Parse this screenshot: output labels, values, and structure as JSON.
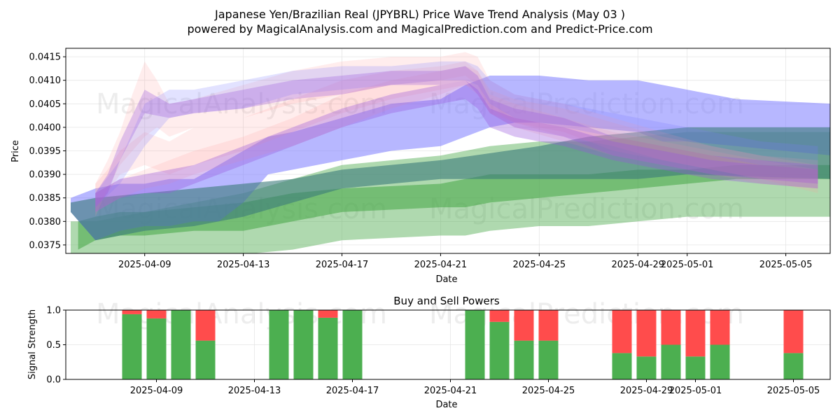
{
  "title_line1": "Japanese Yen/Brazilian Real (JPYBRL) Price Wave Trend Analysis (May 03 )",
  "title_line2": "powered by MagicalAnalysis.com and MagicalPrediction.com and Predict-Price.com",
  "watermarks": [
    "MagicalAnalysis.com",
    "MagicalPrediction.com"
  ],
  "colors": {
    "red": "#ff9a9a",
    "blue": "#7b7bff",
    "purple": "#9955dd",
    "green": "#4daa4d",
    "teal": "#3a7a7a",
    "buy": "#4caf50",
    "sell": "#ff4c4c"
  },
  "chart_data": [
    {
      "type": "area",
      "title": "",
      "xlabel": "Date",
      "ylabel": "Price",
      "x_start": "2025-04-06",
      "xlim": [
        -0.2,
        30.8
      ],
      "ylim": [
        0.03732,
        0.04168
      ],
      "x_ticks": [
        {
          "day": 3,
          "label": "2025-04-09"
        },
        {
          "day": 7,
          "label": "2025-04-13"
        },
        {
          "day": 11,
          "label": "2025-04-17"
        },
        {
          "day": 15,
          "label": "2025-04-21"
        },
        {
          "day": 19,
          "label": "2025-04-25"
        },
        {
          "day": 23,
          "label": "2025-04-29"
        },
        {
          "day": 25,
          "label": "2025-05-01"
        },
        {
          "day": 29,
          "label": "2025-05-05"
        }
      ],
      "y_ticks": [
        {
          "v": 0.0375,
          "label": "0.0375"
        },
        {
          "v": 0.038,
          "label": "0.0380"
        },
        {
          "v": 0.0385,
          "label": "0.0385"
        },
        {
          "v": 0.039,
          "label": "0.0390"
        },
        {
          "v": 0.0395,
          "label": "0.0395"
        },
        {
          "v": 0.04,
          "label": "0.0400"
        },
        {
          "v": 0.0405,
          "label": "0.0405"
        },
        {
          "v": 0.041,
          "label": "0.0410"
        },
        {
          "v": 0.0415,
          "label": "0.0415"
        }
      ],
      "bands": [
        {
          "color": "green",
          "opacity": 0.45,
          "x": [
            0,
            1,
            3,
            5,
            7,
            9,
            11,
            15,
            16,
            17,
            19,
            21,
            23,
            25,
            27,
            30.9
          ],
          "lo": [
            0.0372,
            0.0372,
            0.0373,
            0.0373,
            0.0373,
            0.0374,
            0.0376,
            0.0377,
            0.0377,
            0.0378,
            0.0379,
            0.0379,
            0.038,
            0.0381,
            0.0381,
            0.0381
          ],
          "hi": [
            0.038,
            0.038,
            0.0382,
            0.0384,
            0.0386,
            0.0389,
            0.0392,
            0.0394,
            0.0395,
            0.0396,
            0.0397,
            0.0397,
            0.0398,
            0.0399,
            0.0399,
            0.0399
          ]
        },
        {
          "color": "green",
          "opacity": 0.6,
          "x": [
            0.3,
            1,
            2,
            3,
            5,
            7,
            9,
            11,
            15,
            16,
            17,
            19,
            21,
            23,
            25,
            27,
            30.9
          ],
          "lo": [
            0.0374,
            0.0376,
            0.0377,
            0.0377,
            0.0378,
            0.0378,
            0.038,
            0.0382,
            0.0383,
            0.0383,
            0.0384,
            0.0385,
            0.0386,
            0.0387,
            0.0388,
            0.0389,
            0.0389
          ],
          "hi": [
            0.038,
            0.0381,
            0.0382,
            0.0382,
            0.0383,
            0.0384,
            0.0386,
            0.0387,
            0.0388,
            0.0389,
            0.039,
            0.039,
            0.039,
            0.0391,
            0.0391,
            0.0392,
            0.0392
          ]
        },
        {
          "color": "blue",
          "opacity": 0.55,
          "x": [
            0,
            1,
            2,
            3,
            4,
            5,
            6,
            7,
            8,
            9,
            11,
            13,
            15,
            16,
            17,
            18,
            19,
            21,
            23,
            24,
            25,
            27,
            30.9
          ],
          "lo": [
            0.0382,
            0.0376,
            0.0378,
            0.0379,
            0.0379,
            0.038,
            0.038,
            0.0384,
            0.039,
            0.0391,
            0.0393,
            0.0395,
            0.0396,
            0.0398,
            0.04,
            0.0401,
            0.0401,
            0.04,
            0.0399,
            0.0397,
            0.0397,
            0.0396,
            0.0394
          ],
          "hi": [
            0.0385,
            0.0387,
            0.0388,
            0.0388,
            0.0389,
            0.0389,
            0.0392,
            0.0395,
            0.0398,
            0.0399,
            0.0402,
            0.0405,
            0.0406,
            0.0409,
            0.0411,
            0.0411,
            0.0411,
            0.041,
            0.041,
            0.0409,
            0.0408,
            0.0406,
            0.0405
          ]
        },
        {
          "color": "teal",
          "opacity": 0.6,
          "x": [
            0,
            1,
            3,
            5,
            7,
            9,
            11,
            15,
            19,
            21,
            23,
            25,
            30.9
          ],
          "lo": [
            0.0382,
            0.0376,
            0.0378,
            0.0379,
            0.0381,
            0.0384,
            0.0387,
            0.0389,
            0.0389,
            0.0389,
            0.0389,
            0.039,
            0.0389
          ],
          "hi": [
            0.0384,
            0.0385,
            0.0386,
            0.0387,
            0.0388,
            0.0389,
            0.0391,
            0.0393,
            0.0396,
            0.0398,
            0.0399,
            0.04,
            0.04
          ]
        },
        {
          "color": "red",
          "opacity": 0.18,
          "x": [
            1,
            1.5,
            2,
            2.5,
            3,
            3.5,
            4,
            5,
            7,
            9,
            11,
            13,
            15,
            16,
            16.5,
            17,
            18,
            20,
            22,
            24,
            26,
            28,
            30.3
          ],
          "lo": [
            0.0381,
            0.0387,
            0.0392,
            0.0395,
            0.0398,
            0.04,
            0.0398,
            0.04,
            0.0402,
            0.0405,
            0.0407,
            0.0409,
            0.041,
            0.0411,
            0.0409,
            0.0404,
            0.0401,
            0.0399,
            0.0395,
            0.0393,
            0.0391,
            0.0389,
            0.0386
          ],
          "hi": [
            0.0388,
            0.0393,
            0.0399,
            0.0407,
            0.0414,
            0.041,
            0.0405,
            0.0406,
            0.0409,
            0.0412,
            0.0414,
            0.0415,
            0.0415,
            0.0416,
            0.0415,
            0.041,
            0.0407,
            0.0405,
            0.0402,
            0.0399,
            0.0396,
            0.0394,
            0.0392
          ]
        },
        {
          "color": "red",
          "opacity": 0.18,
          "x": [
            1,
            1.5,
            2,
            3,
            4,
            5,
            7,
            9,
            11,
            13,
            15,
            16,
            16.5,
            17,
            18,
            20,
            22,
            24,
            26,
            28,
            30.3
          ],
          "lo": [
            0.0383,
            0.0386,
            0.039,
            0.0392,
            0.039,
            0.0392,
            0.0395,
            0.0399,
            0.0403,
            0.0406,
            0.0408,
            0.0409,
            0.0407,
            0.0403,
            0.04,
            0.0397,
            0.0394,
            0.0392,
            0.039,
            0.0388,
            0.0387
          ],
          "hi": [
            0.0388,
            0.0391,
            0.0395,
            0.0399,
            0.0397,
            0.04,
            0.0402,
            0.0406,
            0.041,
            0.0412,
            0.0413,
            0.0414,
            0.0412,
            0.0407,
            0.0405,
            0.0402,
            0.0399,
            0.0397,
            0.0395,
            0.0393,
            0.0391
          ]
        },
        {
          "color": "red",
          "opacity": 0.18,
          "x": [
            1,
            2,
            3,
            4,
            5,
            7,
            9,
            11,
            13,
            15,
            16,
            16.5,
            17,
            18,
            20,
            22,
            24,
            26,
            28,
            30.3
          ],
          "lo": [
            0.0382,
            0.0385,
            0.0387,
            0.0388,
            0.039,
            0.0393,
            0.0396,
            0.04,
            0.0404,
            0.0407,
            0.0409,
            0.0408,
            0.0403,
            0.0401,
            0.0398,
            0.0396,
            0.0393,
            0.0391,
            0.0389,
            0.0388
          ],
          "hi": [
            0.0386,
            0.0389,
            0.0391,
            0.0393,
            0.0395,
            0.0398,
            0.0402,
            0.0407,
            0.041,
            0.0412,
            0.0413,
            0.0412,
            0.0408,
            0.0406,
            0.0404,
            0.0401,
            0.0398,
            0.0396,
            0.0394,
            0.0393
          ]
        },
        {
          "color": "blue",
          "opacity": 0.22,
          "x": [
            1,
            2,
            3,
            4,
            5,
            7,
            9,
            11,
            13,
            15,
            16,
            16.5,
            17,
            18,
            20,
            22,
            24,
            26,
            28,
            30.3
          ],
          "lo": [
            0.0383,
            0.0388,
            0.0396,
            0.0402,
            0.0403,
            0.0404,
            0.0407,
            0.0408,
            0.0409,
            0.041,
            0.041,
            0.0409,
            0.0405,
            0.0402,
            0.04,
            0.0398,
            0.0396,
            0.0394,
            0.0392,
            0.0391
          ],
          "hi": [
            0.0386,
            0.0393,
            0.0405,
            0.0408,
            0.0408,
            0.041,
            0.0412,
            0.0413,
            0.0413,
            0.0414,
            0.0414,
            0.0413,
            0.041,
            0.0407,
            0.0405,
            0.0403,
            0.0401,
            0.0399,
            0.0397,
            0.0396
          ]
        },
        {
          "color": "purple",
          "opacity": 0.3,
          "x": [
            1,
            1.5,
            2,
            3,
            4,
            5,
            7,
            9,
            11,
            13,
            15,
            16,
            16.5,
            17,
            18,
            20,
            22,
            24,
            26,
            28,
            30.3
          ],
          "lo": [
            0.0383,
            0.0386,
            0.0393,
            0.0403,
            0.0402,
            0.0403,
            0.0404,
            0.0406,
            0.0407,
            0.0409,
            0.0409,
            0.041,
            0.0407,
            0.0403,
            0.04,
            0.0398,
            0.0394,
            0.0392,
            0.039,
            0.0389,
            0.0388
          ],
          "hi": [
            0.0386,
            0.039,
            0.0397,
            0.0408,
            0.0405,
            0.0406,
            0.0408,
            0.041,
            0.0411,
            0.0412,
            0.0412,
            0.0413,
            0.0411,
            0.0406,
            0.0404,
            0.0402,
            0.0398,
            0.0396,
            0.0394,
            0.0393,
            0.0392
          ]
        },
        {
          "color": "purple",
          "opacity": 0.35,
          "x": [
            1,
            2,
            3,
            4,
            5,
            7,
            9,
            11,
            13,
            15,
            16,
            16.5,
            17,
            18,
            20,
            22,
            24,
            26,
            28,
            30.3
          ],
          "lo": [
            0.0382,
            0.0385,
            0.0386,
            0.0386,
            0.0388,
            0.0392,
            0.0396,
            0.04,
            0.0403,
            0.0405,
            0.0406,
            0.0404,
            0.04,
            0.0398,
            0.0396,
            0.0393,
            0.0391,
            0.0389,
            0.0388,
            0.0387
          ],
          "hi": [
            0.0386,
            0.0389,
            0.039,
            0.0391,
            0.0392,
            0.0396,
            0.04,
            0.0404,
            0.0407,
            0.0409,
            0.041,
            0.0408,
            0.0404,
            0.0402,
            0.04,
            0.0397,
            0.0395,
            0.0393,
            0.0392,
            0.0391
          ]
        }
      ]
    },
    {
      "type": "bar",
      "title": "Buy and Sell Powers",
      "xlabel": "Date",
      "ylabel": "Signal Strength",
      "xlim": [
        -0.7,
        30.5
      ],
      "ylim": [
        0,
        1
      ],
      "y_ticks": [
        {
          "v": 0,
          "label": "0.0"
        },
        {
          "v": 0.5,
          "label": "0.5"
        },
        {
          "v": 1,
          "label": "1.0"
        }
      ],
      "x_ticks": [
        {
          "day": 3,
          "label": "2025-04-09"
        },
        {
          "day": 7,
          "label": "2025-04-13"
        },
        {
          "day": 11,
          "label": "2025-04-17"
        },
        {
          "day": 15,
          "label": "2025-04-21"
        },
        {
          "day": 19,
          "label": "2025-04-25"
        },
        {
          "day": 23,
          "label": "2025-04-29"
        },
        {
          "day": 25,
          "label": "2025-05-01"
        },
        {
          "day": 29,
          "label": "2025-05-05"
        }
      ],
      "bars": [
        {
          "day": 2,
          "buy": 0.94
        },
        {
          "day": 3,
          "buy": 0.88
        },
        {
          "day": 4,
          "buy": 1.0
        },
        {
          "day": 5,
          "buy": 0.56
        },
        {
          "day": 8,
          "buy": 1.0
        },
        {
          "day": 9,
          "buy": 1.0
        },
        {
          "day": 10,
          "buy": 0.89
        },
        {
          "day": 11,
          "buy": 1.0
        },
        {
          "day": 16,
          "buy": 1.0
        },
        {
          "day": 17,
          "buy": 0.83
        },
        {
          "day": 18,
          "buy": 0.56
        },
        {
          "day": 19,
          "buy": 0.56
        },
        {
          "day": 22,
          "buy": 0.38
        },
        {
          "day": 23,
          "buy": 0.33
        },
        {
          "day": 24,
          "buy": 0.5
        },
        {
          "day": 25,
          "buy": 0.33
        },
        {
          "day": 26,
          "buy": 0.5
        },
        {
          "day": 29,
          "buy": 0.38
        }
      ]
    }
  ]
}
